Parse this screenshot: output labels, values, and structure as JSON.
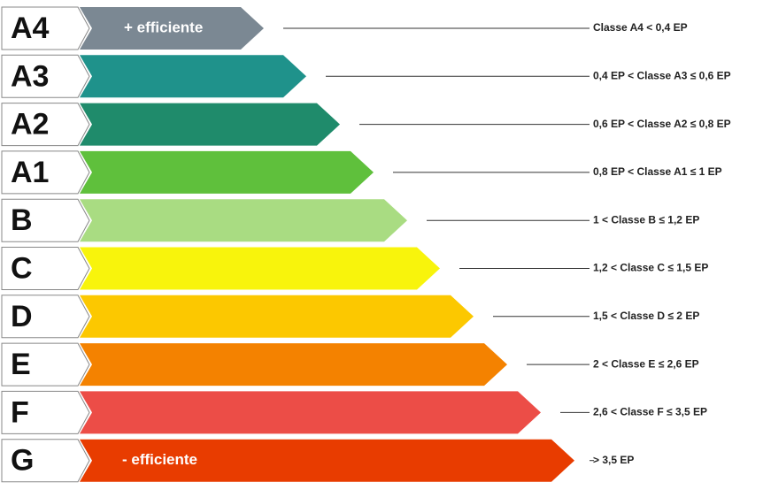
{
  "classes": [
    {
      "label": "A4",
      "range": "Classe A4 < 0,4 EP",
      "bar_text": "+ efficiente"
    },
    {
      "label": "A3",
      "range": "0,4 EP < Classe A3 ≤ 0,6 EP"
    },
    {
      "label": "A2",
      "range": "0,6 EP < Classe A2 ≤ 0,8 EP"
    },
    {
      "label": "A1",
      "range": "0,8 EP < Classe A1 ≤ 1 EP"
    },
    {
      "label": "B",
      "range": "1 < Classe B ≤ 1,2 EP"
    },
    {
      "label": "C",
      "range": "1,2 < Classe C ≤ 1,5 EP"
    },
    {
      "label": "D",
      "range": "1,5 < Classe D ≤ 2 EP"
    },
    {
      "label": "E",
      "range": "2 < Classe E ≤ 2,6 EP"
    },
    {
      "label": "F",
      "range": "2,6 < Classe F ≤ 3,5 EP"
    },
    {
      "label": "G",
      "range": "> 3,5 EP",
      "bar_text": "- efficiente"
    }
  ]
}
